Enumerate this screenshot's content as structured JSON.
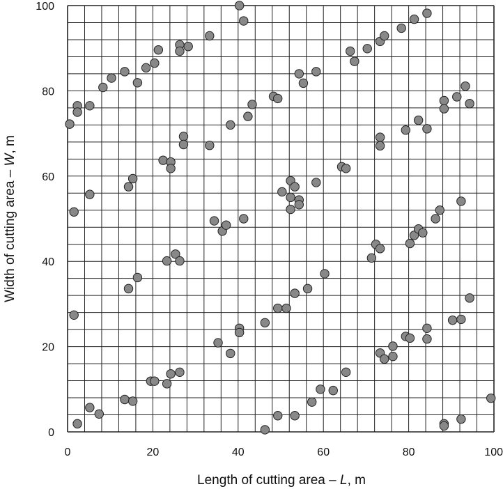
{
  "chart_data": {
    "type": "scatter",
    "title": "",
    "xlabel": {
      "prefix": "Length of cutting area – ",
      "symbol": "L",
      "suffix": ", m"
    },
    "ylabel": {
      "prefix": "Width of cutting area – ",
      "symbol": "W",
      "suffix": ", m"
    },
    "xlim": [
      0,
      100
    ],
    "ylim": [
      0,
      100
    ],
    "x_ticks": [
      0,
      20,
      40,
      60,
      80,
      100
    ],
    "y_ticks": [
      0,
      20,
      40,
      60,
      80,
      100
    ],
    "grid": true,
    "grid_step": 4,
    "marker_fill": "#888888",
    "marker_edge": "#222222",
    "points": [
      [
        0.5,
        72.2
      ],
      [
        1.5,
        51.6
      ],
      [
        1.5,
        27.4
      ],
      [
        2.3,
        76.5
      ],
      [
        2.3,
        75.0
      ],
      [
        2.3,
        1.9
      ],
      [
        5.2,
        76.5
      ],
      [
        5.2,
        55.7
      ],
      [
        5.2,
        5.7
      ],
      [
        7.4,
        4.2
      ],
      [
        8.3,
        80.8
      ],
      [
        10.3,
        83.0
      ],
      [
        13.4,
        84.5
      ],
      [
        13.4,
        7.6
      ],
      [
        14.3,
        57.5
      ],
      [
        14.3,
        33.6
      ],
      [
        15.3,
        59.4
      ],
      [
        15.3,
        7.2
      ],
      [
        16.4,
        81.9
      ],
      [
        16.4,
        36.2
      ],
      [
        18.4,
        85.4
      ],
      [
        19.5,
        11.9
      ],
      [
        20.4,
        86.5
      ],
      [
        20.4,
        11.9
      ],
      [
        21.3,
        89.6
      ],
      [
        22.4,
        63.7
      ],
      [
        23.3,
        40.1
      ],
      [
        23.3,
        11.3
      ],
      [
        24.2,
        63.3
      ],
      [
        24.2,
        61.8
      ],
      [
        24.2,
        13.6
      ],
      [
        25.3,
        41.7
      ],
      [
        26.3,
        90.8
      ],
      [
        26.3,
        89.3
      ],
      [
        26.3,
        40.1
      ],
      [
        26.3,
        14.0
      ],
      [
        27.2,
        69.3
      ],
      [
        27.2,
        67.4
      ],
      [
        28.3,
        90.4
      ],
      [
        33.3,
        92.9
      ],
      [
        33.3,
        67.2
      ],
      [
        34.4,
        49.5
      ],
      [
        35.3,
        20.9
      ],
      [
        36.3,
        47.1
      ],
      [
        37.2,
        48.5
      ],
      [
        38.2,
        72.0
      ],
      [
        38.2,
        18.4
      ],
      [
        40.3,
        100.0
      ],
      [
        40.3,
        24.3
      ],
      [
        40.3,
        23.3
      ],
      [
        41.3,
        96.4
      ],
      [
        41.3,
        50.0
      ],
      [
        42.3,
        74.0
      ],
      [
        43.3,
        76.8
      ],
      [
        46.3,
        25.6
      ],
      [
        46.3,
        0.5
      ],
      [
        48.3,
        78.7
      ],
      [
        49.3,
        78.2
      ],
      [
        49.3,
        29.0
      ],
      [
        49.3,
        3.8
      ],
      [
        50.3,
        56.3
      ],
      [
        51.3,
        29.0
      ],
      [
        52.3,
        58.9
      ],
      [
        52.3,
        55.0
      ],
      [
        52.3,
        52.2
      ],
      [
        53.3,
        57.5
      ],
      [
        53.3,
        32.5
      ],
      [
        53.3,
        3.8
      ],
      [
        54.3,
        84.0
      ],
      [
        54.3,
        54.4
      ],
      [
        54.3,
        53.3
      ],
      [
        55.3,
        81.8
      ],
      [
        56.3,
        33.6
      ],
      [
        57.3,
        7.0
      ],
      [
        58.3,
        84.5
      ],
      [
        58.3,
        58.5
      ],
      [
        59.3,
        10.0
      ],
      [
        60.3,
        37.1
      ],
      [
        62.3,
        9.7
      ],
      [
        64.3,
        62.2
      ],
      [
        65.3,
        61.8
      ],
      [
        65.3,
        14.0
      ],
      [
        66.3,
        89.3
      ],
      [
        67.3,
        86.9
      ],
      [
        70.3,
        89.9
      ],
      [
        71.3,
        40.8
      ],
      [
        72.3,
        44.0
      ],
      [
        73.3,
        91.6
      ],
      [
        73.3,
        69.1
      ],
      [
        73.3,
        67.1
      ],
      [
        73.3,
        43.0
      ],
      [
        73.3,
        18.5
      ],
      [
        74.3,
        92.9
      ],
      [
        74.3,
        17.1
      ],
      [
        76.3,
        20.1
      ],
      [
        76.3,
        17.7
      ],
      [
        78.3,
        94.7
      ],
      [
        79.3,
        70.8
      ],
      [
        79.3,
        22.4
      ],
      [
        80.3,
        44.2
      ],
      [
        80.3,
        22.0
      ],
      [
        81.3,
        96.8
      ],
      [
        81.3,
        46.1
      ],
      [
        82.3,
        73.1
      ],
      [
        82.3,
        47.6
      ],
      [
        83.3,
        46.7
      ],
      [
        84.3,
        98.2
      ],
      [
        84.3,
        71.1
      ],
      [
        84.3,
        24.3
      ],
      [
        84.3,
        21.8
      ],
      [
        86.3,
        50.0
      ],
      [
        87.3,
        52.0
      ],
      [
        88.3,
        77.7
      ],
      [
        88.3,
        75.8
      ],
      [
        88.3,
        1.9
      ],
      [
        88.3,
        1.4
      ],
      [
        90.3,
        26.2
      ],
      [
        91.3,
        78.6
      ],
      [
        92.3,
        54.1
      ],
      [
        92.3,
        26.4
      ],
      [
        92.3,
        3.0
      ],
      [
        93.3,
        81.1
      ],
      [
        94.3,
        77.0
      ],
      [
        94.3,
        31.4
      ],
      [
        99.3,
        7.9
      ]
    ]
  }
}
